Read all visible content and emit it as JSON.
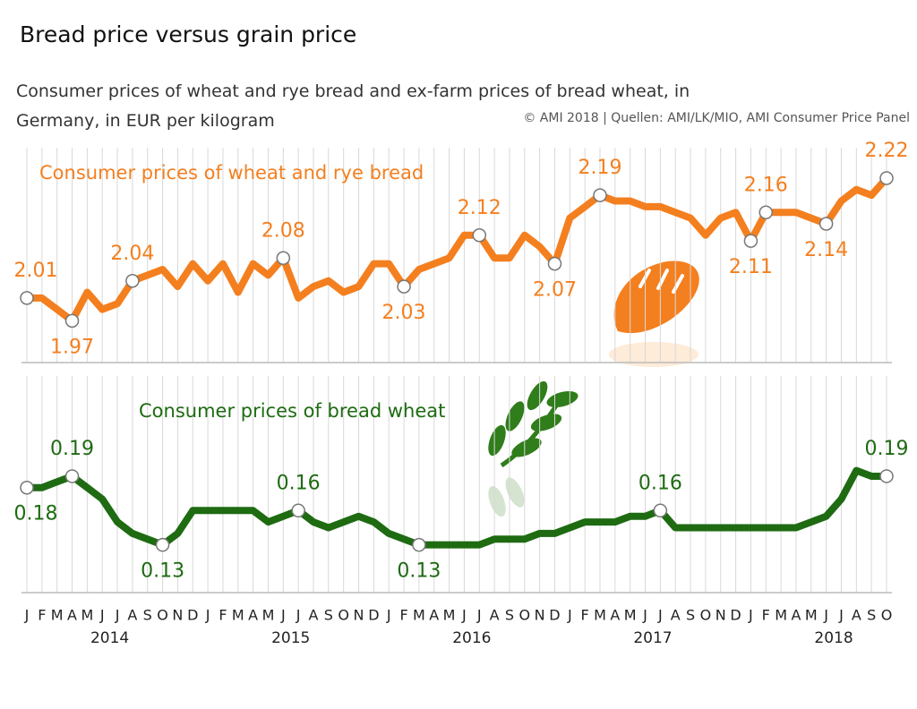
{
  "chart_data": {
    "type": "line",
    "title": "Bread price versus grain price",
    "subtitle": "Consumer prices of wheat and rye bread and ex-farm prices of bread wheat, in Germany, in EUR per kilogram",
    "source": "© AMI 2018 | Quellen: AMI/LK/MIO, AMI Consumer Price Panel",
    "categories": [
      "J",
      "F",
      "M",
      "A",
      "M",
      "J",
      "J",
      "A",
      "S",
      "O",
      "N",
      "D",
      "J",
      "F",
      "M",
      "A",
      "M",
      "J",
      "J",
      "A",
      "S",
      "O",
      "N",
      "D",
      "J",
      "F",
      "M",
      "A",
      "M",
      "J",
      "J",
      "A",
      "S",
      "O",
      "N",
      "D",
      "J",
      "F",
      "M",
      "A",
      "M",
      "J",
      "J",
      "A",
      "S",
      "O",
      "N",
      "D",
      "J",
      "F",
      "M",
      "A",
      "M",
      "J",
      "J",
      "A",
      "S",
      "O"
    ],
    "years": [
      "2014",
      "2015",
      "2016",
      "2017",
      "2018"
    ],
    "grid": true,
    "series": [
      {
        "name": "Consumer prices of wheat and rye bread",
        "color": "#f47f1f",
        "ylim": [
          1.9,
          2.26
        ],
        "values": [
          2.01,
          2.01,
          1.99,
          1.97,
          2.02,
          1.99,
          2.0,
          2.04,
          2.05,
          2.06,
          2.03,
          2.07,
          2.04,
          2.07,
          2.02,
          2.07,
          2.05,
          2.08,
          2.01,
          2.03,
          2.04,
          2.02,
          2.03,
          2.07,
          2.07,
          2.03,
          2.06,
          2.07,
          2.08,
          2.12,
          2.12,
          2.08,
          2.08,
          2.12,
          2.1,
          2.07,
          2.15,
          2.17,
          2.19,
          2.18,
          2.18,
          2.17,
          2.17,
          2.16,
          2.15,
          2.12,
          2.15,
          2.16,
          2.11,
          2.16,
          2.16,
          2.16,
          2.15,
          2.14,
          2.18,
          2.2,
          2.19,
          2.22
        ]
      },
      {
        "name": "Consumer prices of bread wheat",
        "color": "#1e6b12",
        "ylim": [
          0.1,
          0.22
        ],
        "values": [
          0.18,
          0.18,
          0.185,
          0.19,
          0.18,
          0.17,
          0.15,
          0.14,
          0.135,
          0.13,
          0.14,
          0.16,
          0.16,
          0.16,
          0.16,
          0.16,
          0.15,
          0.155,
          0.16,
          0.15,
          0.145,
          0.15,
          0.155,
          0.15,
          0.14,
          0.135,
          0.13,
          0.13,
          0.13,
          0.13,
          0.13,
          0.135,
          0.135,
          0.135,
          0.14,
          0.14,
          0.145,
          0.15,
          0.15,
          0.15,
          0.155,
          0.155,
          0.16,
          0.145,
          0.145,
          0.145,
          0.145,
          0.145,
          0.145,
          0.145,
          0.145,
          0.145,
          0.15,
          0.155,
          0.17,
          0.195,
          0.19,
          0.19
        ]
      }
    ]
  }
}
